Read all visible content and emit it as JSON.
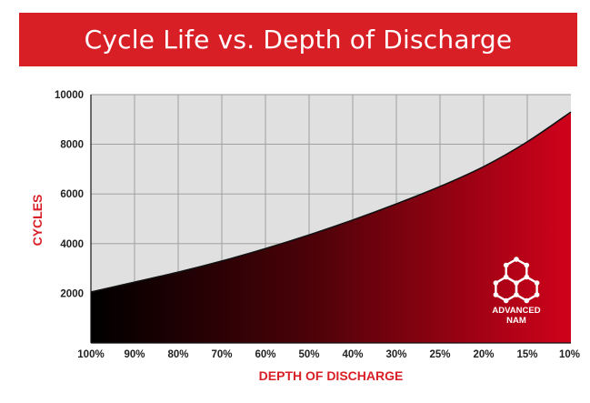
{
  "header": {
    "title": "Cycle Life vs. Depth of Discharge"
  },
  "logo": {
    "line1": "ADVANCED",
    "line2": "NAM",
    "icon": "molecule-hexagon-icon"
  },
  "colors": {
    "accent": "#d91f26",
    "grid_bg": "#e0e0e0",
    "gradient_start": "#000000",
    "gradient_end": "#d0021b"
  },
  "chart_data": {
    "type": "area",
    "title": "Cycle Life vs. Depth of Discharge",
    "xlabel": "DEPTH OF DISCHARGE",
    "ylabel": "CYCLES",
    "categories": [
      "100%",
      "90%",
      "80%",
      "70%",
      "60%",
      "50%",
      "40%",
      "30%",
      "25%",
      "20%",
      "15%",
      "10%"
    ],
    "values": [
      2050,
      2450,
      2850,
      3300,
      3800,
      4350,
      4950,
      5600,
      6300,
      7100,
      8100,
      9300
    ],
    "yticks": [
      2000,
      4000,
      6000,
      8000,
      10000
    ],
    "ylim": [
      0,
      10000
    ],
    "grid": true,
    "series": [
      {
        "name": "Cycles",
        "values": [
          2050,
          2450,
          2850,
          3300,
          3800,
          4350,
          4950,
          5600,
          6300,
          7100,
          8100,
          9300
        ]
      }
    ]
  }
}
